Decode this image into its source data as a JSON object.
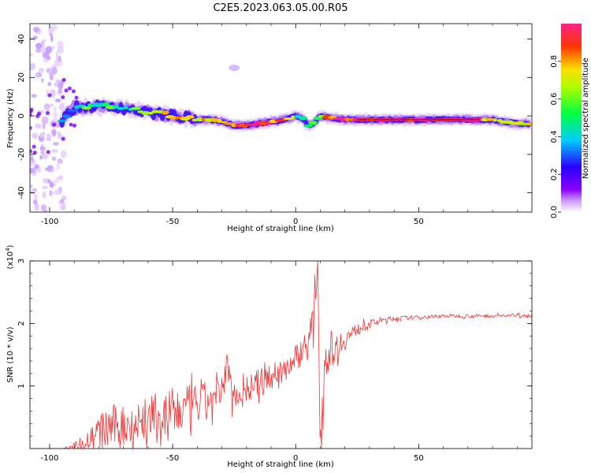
{
  "figure": {
    "title": "C2E5.2023.063.05.00.R05"
  },
  "chart_data": [
    {
      "type": "heatmap",
      "xlabel": "Height of straight line (km)",
      "ylabel": "Frequency (Hz)",
      "xlim": [
        -108,
        96
      ],
      "ylim": [
        -50,
        48
      ],
      "xticks": [
        -100,
        -50,
        0,
        50
      ],
      "yticks": [
        -40,
        -20,
        0,
        20,
        40
      ],
      "colorbar": {
        "label": "Normalized spectral amplitude",
        "range": [
          0.0,
          1.0
        ],
        "ticks": [
          0.0,
          0.2,
          0.4,
          0.6,
          0.8
        ],
        "colormap": "hsv-rainbow (white → purple → blue → cyan → green → yellow → red)"
      },
      "ridge": {
        "x": [
          -95,
          -90,
          -85,
          -80,
          -75,
          -70,
          -65,
          -60,
          -55,
          -50,
          -45,
          -40,
          -35,
          -30,
          -25,
          -20,
          -15,
          -10,
          -5,
          0,
          3,
          5,
          8,
          10,
          15,
          20,
          30,
          40,
          50,
          60,
          70,
          75,
          80,
          85,
          90,
          95
        ],
        "frequency": [
          -2,
          4,
          5,
          5,
          5,
          4,
          3,
          2,
          1,
          0,
          -1,
          -2,
          -2,
          -3,
          -5,
          -5,
          -4,
          -3,
          -2,
          0,
          -1,
          -5,
          -3,
          0,
          -1,
          -2,
          -2,
          -2,
          -2,
          -2,
          -2,
          -2,
          -2,
          -3,
          -4,
          -4
        ],
        "amplitude": [
          0.35,
          0.5,
          0.55,
          0.55,
          0.6,
          0.55,
          0.55,
          0.65,
          0.7,
          0.75,
          0.75,
          0.75,
          0.8,
          0.8,
          0.9,
          0.9,
          0.9,
          0.85,
          0.8,
          0.6,
          0.45,
          0.4,
          0.6,
          0.75,
          0.9,
          0.95,
          0.97,
          0.98,
          1.0,
          1.0,
          0.98,
          0.95,
          0.7,
          0.6,
          0.7,
          0.75
        ]
      }
    },
    {
      "type": "line",
      "xlabel": "Height of straight line (km)",
      "ylabel": "SNR (10 * v/v)",
      "ylabel_scale": "(x10^4)",
      "xlim": [
        -108,
        96
      ],
      "ylim": [
        0,
        3.0
      ],
      "xticks": [
        -100,
        -50,
        0,
        50
      ],
      "yticks": [
        1,
        2,
        3
      ],
      "series": [
        {
          "color": "#e83a3a",
          "x": [
            -108,
            -95,
            -90,
            -85,
            -80,
            -75,
            -70,
            -65,
            -60,
            -55,
            -50,
            -45,
            -40,
            -35,
            -30,
            -28,
            -26,
            -24,
            -20,
            -15,
            -10,
            -5,
            0,
            4,
            7,
            8,
            9,
            9.5,
            10,
            11,
            12,
            14,
            16,
            20,
            25,
            30,
            35,
            40,
            50,
            60,
            70,
            80,
            90,
            96
          ],
          "y": [
            0.0,
            0.0,
            0.05,
            0.12,
            0.25,
            0.35,
            0.38,
            0.4,
            0.45,
            0.5,
            0.55,
            0.62,
            0.7,
            0.75,
            0.85,
            1.4,
            0.9,
            0.85,
            0.95,
            1.05,
            1.15,
            1.25,
            1.45,
            1.65,
            1.85,
            2.4,
            3.0,
            1.3,
            0.1,
            0.7,
            1.5,
            1.6,
            1.6,
            1.75,
            1.9,
            2.0,
            2.05,
            2.08,
            2.1,
            2.12,
            2.12,
            2.12,
            2.13,
            2.13
          ],
          "noise": [
            0,
            0,
            0.05,
            0.15,
            0.3,
            0.35,
            0.35,
            0.4,
            0.4,
            0.42,
            0.42,
            0.38,
            0.35,
            0.32,
            0.3,
            0.2,
            0.25,
            0.2,
            0.22,
            0.22,
            0.22,
            0.22,
            0.22,
            0.25,
            0.4,
            0.3,
            0.0,
            0.5,
            0.1,
            0.5,
            0.5,
            0.3,
            0.25,
            0.18,
            0.1,
            0.06,
            0.05,
            0.04,
            0.03,
            0.03,
            0.03,
            0.03,
            0.03,
            0.03
          ]
        }
      ]
    }
  ]
}
